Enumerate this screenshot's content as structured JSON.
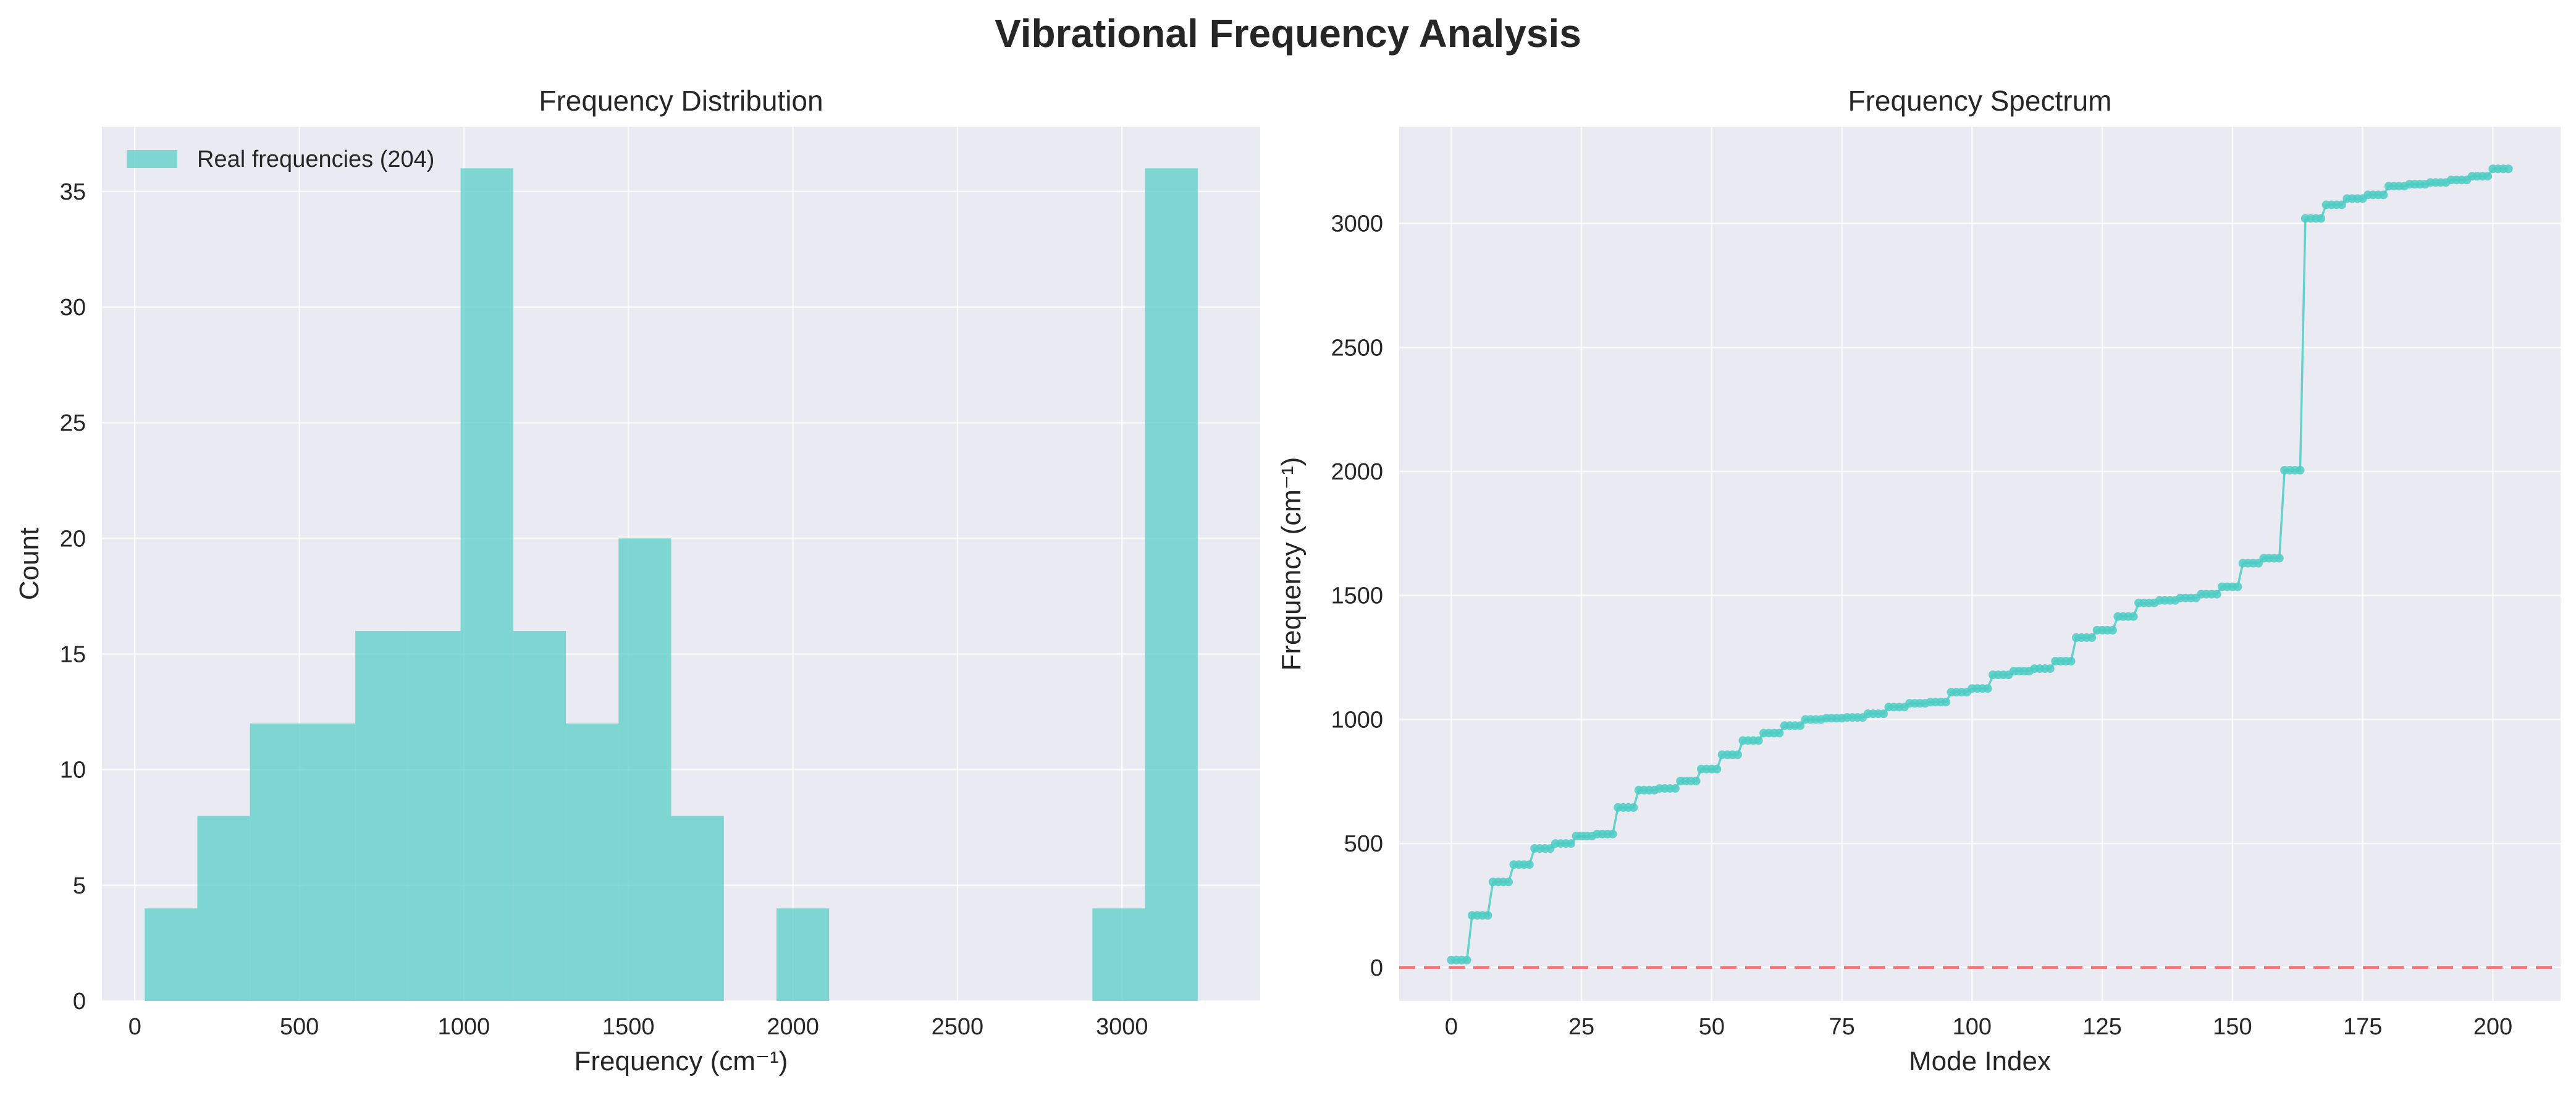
{
  "figure": {
    "title": "Vibrational Frequency Analysis"
  },
  "colors": {
    "accent": "#4ecdc4",
    "zero_line": "#ff6b6b",
    "plot_background": "#eaeaf2"
  },
  "chart_data": [
    {
      "type": "bar",
      "subtype": "histogram",
      "title": "Frequency Distribution",
      "xlabel": "Frequency (cm⁻¹)",
      "ylabel": "Count",
      "xlim": [
        -100,
        3420
      ],
      "ylim": [
        0,
        37.8
      ],
      "xticks": [
        0,
        500,
        1000,
        1500,
        2000,
        2500,
        3000
      ],
      "yticks": [
        0,
        5,
        10,
        15,
        20,
        25,
        30,
        35
      ],
      "grid": true,
      "legend": {
        "position": "top-left",
        "entries": [
          "Real frequencies (204)"
        ]
      },
      "bin_edges": [
        30,
        190,
        350,
        510,
        670,
        830,
        990,
        1150,
        1310,
        1470,
        1630,
        1790,
        1950,
        2110,
        2270,
        2430,
        2590,
        2750,
        2910,
        3070,
        3230
      ],
      "counts": [
        4,
        8,
        12,
        12,
        16,
        16,
        36,
        16,
        12,
        20,
        8,
        0,
        4,
        0,
        0,
        0,
        0,
        0,
        4,
        36
      ],
      "series": [
        {
          "name": "Real frequencies (204)",
          "color": "#4ecdc4"
        }
      ]
    },
    {
      "type": "line",
      "title": "Frequency Spectrum",
      "xlabel": "Mode Index",
      "ylabel": "Frequency (cm⁻¹)",
      "xlim": [
        -10,
        213
      ],
      "ylim": [
        -135,
        3390
      ],
      "xticks": [
        0,
        25,
        50,
        75,
        100,
        125,
        150,
        175,
        200
      ],
      "yticks": [
        0,
        500,
        1000,
        1500,
        2000,
        2500,
        3000
      ],
      "grid": true,
      "reference_line": {
        "y": 0,
        "style": "dashed",
        "color": "#ff6b6b"
      },
      "steps": [
        [
          0,
          3,
          30
        ],
        [
          4,
          7,
          210
        ],
        [
          8,
          11,
          345
        ],
        [
          12,
          15,
          415
        ],
        [
          16,
          19,
          480
        ],
        [
          20,
          23,
          500
        ],
        [
          24,
          27,
          530
        ],
        [
          28,
          31,
          538
        ],
        [
          32,
          35,
          645
        ],
        [
          36,
          39,
          715
        ],
        [
          40,
          43,
          722
        ],
        [
          44,
          47,
          752
        ],
        [
          48,
          51,
          800
        ],
        [
          52,
          55,
          858
        ],
        [
          56,
          59,
          915
        ],
        [
          60,
          63,
          945
        ],
        [
          64,
          67,
          975
        ],
        [
          68,
          71,
          1000
        ],
        [
          72,
          75,
          1005
        ],
        [
          76,
          79,
          1008
        ],
        [
          80,
          83,
          1023
        ],
        [
          84,
          87,
          1050
        ],
        [
          88,
          91,
          1065
        ],
        [
          92,
          95,
          1070
        ],
        [
          96,
          99,
          1110
        ],
        [
          100,
          103,
          1125
        ],
        [
          104,
          107,
          1180
        ],
        [
          108,
          111,
          1195
        ],
        [
          112,
          115,
          1205
        ],
        [
          116,
          119,
          1235
        ],
        [
          120,
          123,
          1330
        ],
        [
          124,
          127,
          1360
        ],
        [
          128,
          131,
          1415
        ],
        [
          132,
          135,
          1470
        ],
        [
          136,
          139,
          1480
        ],
        [
          140,
          143,
          1490
        ],
        [
          144,
          147,
          1505
        ],
        [
          148,
          151,
          1535
        ],
        [
          152,
          155,
          1630
        ],
        [
          156,
          159,
          1650
        ],
        [
          160,
          163,
          2005
        ],
        [
          164,
          167,
          3020
        ],
        [
          168,
          171,
          3075
        ],
        [
          172,
          175,
          3100
        ],
        [
          176,
          179,
          3115
        ],
        [
          180,
          183,
          3150
        ],
        [
          184,
          187,
          3158
        ],
        [
          188,
          191,
          3165
        ],
        [
          192,
          195,
          3175
        ],
        [
          196,
          199,
          3190
        ],
        [
          200,
          203,
          3220
        ]
      ],
      "series": [
        {
          "color": "#4ecdc4"
        }
      ]
    }
  ]
}
